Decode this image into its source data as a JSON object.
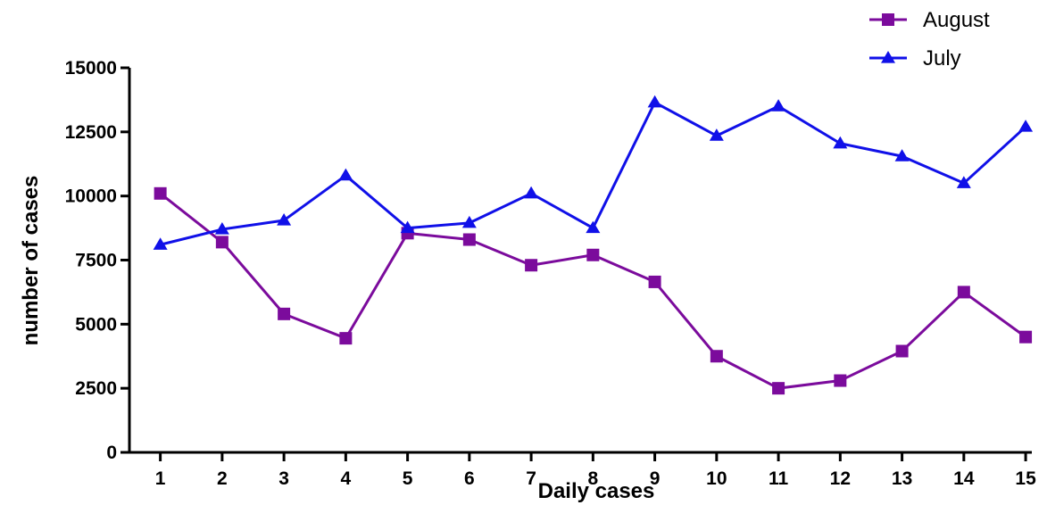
{
  "chart_data": {
    "type": "line",
    "title": "",
    "xlabel": "Daily cases",
    "ylabel": "number of cases",
    "x": [
      1,
      2,
      3,
      4,
      5,
      6,
      7,
      8,
      9,
      10,
      11,
      12,
      13,
      14,
      15
    ],
    "xlim": [
      0.5,
      15.1
    ],
    "ylim": [
      0,
      15000
    ],
    "yticks": [
      0,
      2500,
      5000,
      7500,
      10000,
      12500,
      15000
    ],
    "grid": false,
    "legend_position": "top-right",
    "series": [
      {
        "name": "August",
        "color": "#7B0B9C",
        "marker": "square",
        "values": [
          10100,
          8200,
          5400,
          4450,
          8550,
          8300,
          7300,
          7700,
          6650,
          3750,
          2500,
          2800,
          3950,
          6250,
          4500
        ]
      },
      {
        "name": "July",
        "color": "#1010E8",
        "marker": "triangle",
        "values": [
          8100,
          8700,
          9050,
          10800,
          8750,
          8950,
          10100,
          8750,
          13650,
          12350,
          13500,
          12050,
          11550,
          10500,
          12700
        ]
      }
    ]
  }
}
